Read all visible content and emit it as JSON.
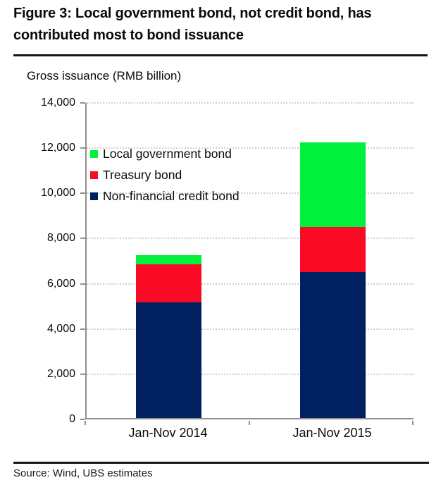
{
  "header": {
    "title": "Figure 3: Local government bond, not credit bond, has contributed most to bond issuance"
  },
  "footer": {
    "source": "Source: Wind, UBS estimates"
  },
  "chart_data": {
    "type": "bar",
    "stacked": true,
    "title": "Gross issuance (RMB billion)",
    "xlabel": "",
    "ylabel": "Gross issuance (RMB billion)",
    "categories": [
      "Jan-Nov 2014",
      "Jan-Nov 2015"
    ],
    "series": [
      {
        "name": "Non-financial credit bond",
        "color": "#012060",
        "values": [
          5100,
          6450
        ]
      },
      {
        "name": "Treasury bond",
        "color": "#f90b26",
        "values": [
          1700,
          2000
        ]
      },
      {
        "name": "Local government bond",
        "color": "#00f03c",
        "values": [
          400,
          3750
        ]
      }
    ],
    "totals": [
      7200,
      12200
    ],
    "ylim": [
      0,
      14000
    ],
    "ytick_step": 2000,
    "yticks": [
      "0",
      "2,000",
      "4,000",
      "6,000",
      "8,000",
      "10,000",
      "12,000",
      "14,000"
    ],
    "grid": "horizontal dotted gridlines at every 2,000",
    "grid_color": "#d2d2d2",
    "axis_color": "#8f8f8f",
    "legend_position": "inside plot, upper left",
    "legend_order_top_to_bottom": [
      "Local government bond",
      "Treasury bond",
      "Non-financial credit bond"
    ]
  }
}
